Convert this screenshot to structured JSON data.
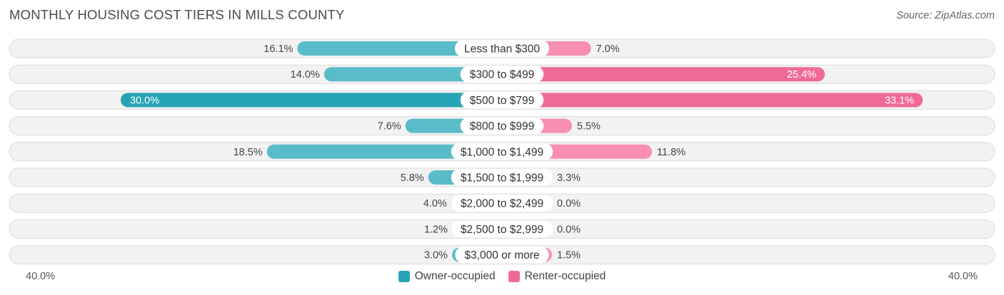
{
  "title": "MONTHLY HOUSING COST TIERS IN MILLS COUNTY",
  "source": "Source: ZipAtlas.com",
  "colors": {
    "owner": "#5bbcc9",
    "owner_strong": "#26a4b7",
    "renter": "#f78fb0",
    "renter_strong": "#f06a98"
  },
  "chart_data": {
    "type": "bar",
    "orientation": "horizontal-diverging",
    "max": 40.0,
    "axis_left_label": "40.0%",
    "axis_right_label": "40.0%",
    "categories": [
      "Less than $300",
      "$300 to $499",
      "$500 to $799",
      "$800 to $999",
      "$1,000 to $1,499",
      "$1,500 to $1,999",
      "$2,000 to $2,499",
      "$2,500 to $2,999",
      "$3,000 or more"
    ],
    "series": [
      {
        "name": "Owner-occupied",
        "values": [
          16.1,
          14.0,
          30.0,
          7.6,
          18.5,
          5.8,
          4.0,
          1.2,
          3.0
        ],
        "labels": [
          "16.1%",
          "14.0%",
          "30.0%",
          "7.6%",
          "18.5%",
          "5.8%",
          "4.0%",
          "1.2%",
          "3.0%"
        ]
      },
      {
        "name": "Renter-occupied",
        "values": [
          7.0,
          25.4,
          33.1,
          5.5,
          11.8,
          3.3,
          0.0,
          0.0,
          1.5
        ],
        "labels": [
          "7.0%",
          "25.4%",
          "33.1%",
          "5.5%",
          "11.8%",
          "3.3%",
          "0.0%",
          "0.0%",
          "1.5%"
        ]
      }
    ],
    "legend_position": "bottom-center"
  }
}
